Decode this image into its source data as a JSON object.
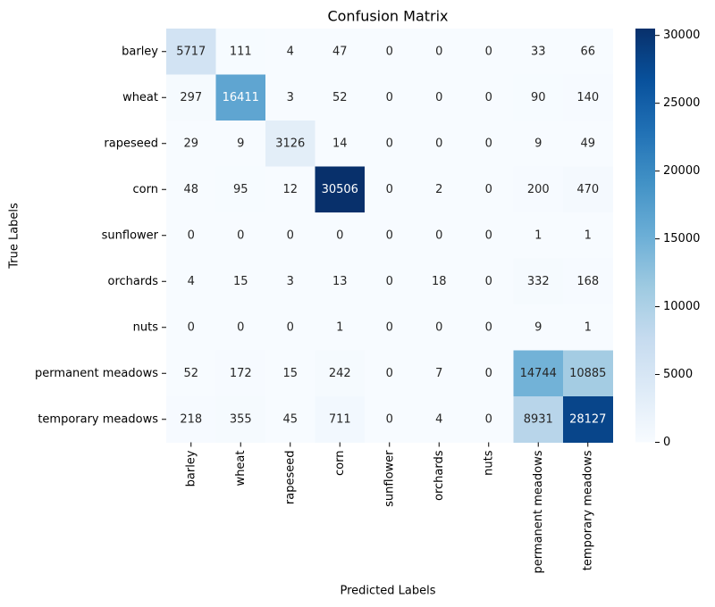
{
  "chart_data": {
    "type": "heatmap",
    "title": "Confusion Matrix",
    "xlabel": "Predicted Labels",
    "ylabel": "True Labels",
    "x_categories": [
      "barley",
      "wheat",
      "rapeseed",
      "corn",
      "sunflower",
      "orchards",
      "nuts",
      "permanent meadows",
      "temporary meadows"
    ],
    "y_categories": [
      "barley",
      "wheat",
      "rapeseed",
      "corn",
      "sunflower",
      "orchards",
      "nuts",
      "permanent meadows",
      "temporary meadows"
    ],
    "values": [
      [
        5717,
        111,
        4,
        47,
        0,
        0,
        0,
        33,
        66
      ],
      [
        297,
        16411,
        3,
        52,
        0,
        0,
        0,
        90,
        140
      ],
      [
        29,
        9,
        3126,
        14,
        0,
        0,
        0,
        9,
        49
      ],
      [
        48,
        95,
        12,
        30506,
        0,
        2,
        0,
        200,
        470
      ],
      [
        0,
        0,
        0,
        0,
        0,
        0,
        0,
        1,
        1
      ],
      [
        4,
        15,
        3,
        13,
        0,
        18,
        0,
        332,
        168
      ],
      [
        0,
        0,
        0,
        1,
        0,
        0,
        0,
        9,
        1
      ],
      [
        52,
        172,
        15,
        242,
        0,
        7,
        0,
        14744,
        10885
      ],
      [
        218,
        355,
        45,
        711,
        0,
        4,
        0,
        8931,
        28127
      ]
    ],
    "colormap": "Blues",
    "colorbar": {
      "range": [
        0,
        30506
      ],
      "ticks": [
        0,
        5000,
        10000,
        15000,
        20000,
        25000,
        30000
      ]
    },
    "grid": false
  }
}
